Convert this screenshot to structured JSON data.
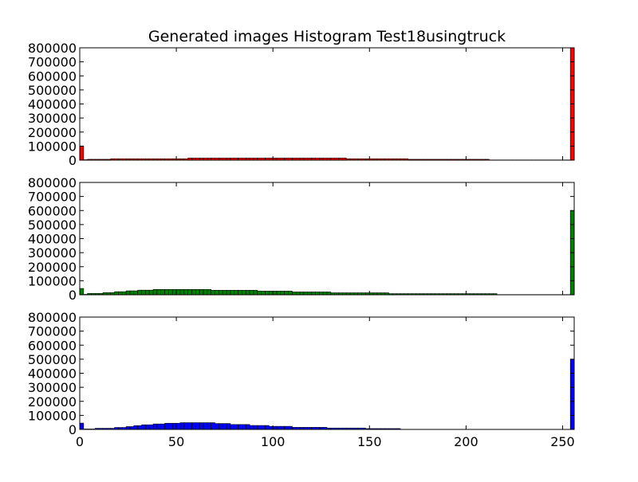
{
  "chart_data": {
    "type": "bar",
    "title": "Generated images Histogram Test18usingtruck",
    "xlim": [
      0,
      256
    ],
    "ylim": [
      0,
      800000
    ],
    "x_ticks": [
      0,
      50,
      100,
      150,
      200,
      250
    ],
    "y_ticks": [
      0,
      100000,
      200000,
      300000,
      400000,
      500000,
      600000,
      700000,
      800000
    ],
    "bins": 128,
    "bin_width": 2,
    "grid": false,
    "legend": "none",
    "panels": [
      {
        "color": "#ff0000",
        "segments": [
          {
            "x_start": 0,
            "x_end": 2,
            "value": 100000
          },
          {
            "x_start": 2,
            "x_end": 4,
            "value": 3000
          },
          {
            "x_start": 4,
            "x_end": 16,
            "value": 6000
          },
          {
            "x_start": 16,
            "x_end": 56,
            "value": 10000
          },
          {
            "x_start": 56,
            "x_end": 138,
            "value": 15000
          },
          {
            "x_start": 138,
            "x_end": 170,
            "value": 10000
          },
          {
            "x_start": 170,
            "x_end": 212,
            "value": 6000
          },
          {
            "x_start": 212,
            "x_end": 254,
            "value": 1500
          },
          {
            "x_start": 254,
            "x_end": 256,
            "value": 800000
          }
        ]
      },
      {
        "color": "#008000",
        "segments": [
          {
            "x_start": 0,
            "x_end": 2,
            "value": 45000
          },
          {
            "x_start": 2,
            "x_end": 4,
            "value": 3000
          },
          {
            "x_start": 4,
            "x_end": 12,
            "value": 10000
          },
          {
            "x_start": 12,
            "x_end": 18,
            "value": 15000
          },
          {
            "x_start": 18,
            "x_end": 24,
            "value": 22000
          },
          {
            "x_start": 24,
            "x_end": 30,
            "value": 28000
          },
          {
            "x_start": 30,
            "x_end": 38,
            "value": 33000
          },
          {
            "x_start": 38,
            "x_end": 68,
            "value": 38000
          },
          {
            "x_start": 68,
            "x_end": 92,
            "value": 32000
          },
          {
            "x_start": 92,
            "x_end": 110,
            "value": 26000
          },
          {
            "x_start": 110,
            "x_end": 130,
            "value": 20000
          },
          {
            "x_start": 130,
            "x_end": 160,
            "value": 14000
          },
          {
            "x_start": 160,
            "x_end": 216,
            "value": 8000
          },
          {
            "x_start": 216,
            "x_end": 254,
            "value": 1500
          },
          {
            "x_start": 254,
            "x_end": 256,
            "value": 600000
          }
        ]
      },
      {
        "color": "#0000ff",
        "segments": [
          {
            "x_start": 0,
            "x_end": 2,
            "value": 45000
          },
          {
            "x_start": 2,
            "x_end": 8,
            "value": 3000
          },
          {
            "x_start": 8,
            "x_end": 18,
            "value": 8000
          },
          {
            "x_start": 18,
            "x_end": 24,
            "value": 14000
          },
          {
            "x_start": 24,
            "x_end": 28,
            "value": 20000
          },
          {
            "x_start": 28,
            "x_end": 32,
            "value": 27000
          },
          {
            "x_start": 32,
            "x_end": 38,
            "value": 33000
          },
          {
            "x_start": 38,
            "x_end": 44,
            "value": 39000
          },
          {
            "x_start": 44,
            "x_end": 52,
            "value": 44000
          },
          {
            "x_start": 52,
            "x_end": 70,
            "value": 48000
          },
          {
            "x_start": 70,
            "x_end": 78,
            "value": 42000
          },
          {
            "x_start": 78,
            "x_end": 88,
            "value": 35000
          },
          {
            "x_start": 88,
            "x_end": 98,
            "value": 28000
          },
          {
            "x_start": 98,
            "x_end": 110,
            "value": 22000
          },
          {
            "x_start": 110,
            "x_end": 128,
            "value": 15000
          },
          {
            "x_start": 128,
            "x_end": 148,
            "value": 10000
          },
          {
            "x_start": 148,
            "x_end": 166,
            "value": 6000
          },
          {
            "x_start": 166,
            "x_end": 254,
            "value": 1000
          },
          {
            "x_start": 254,
            "x_end": 256,
            "value": 500000
          }
        ]
      }
    ]
  }
}
